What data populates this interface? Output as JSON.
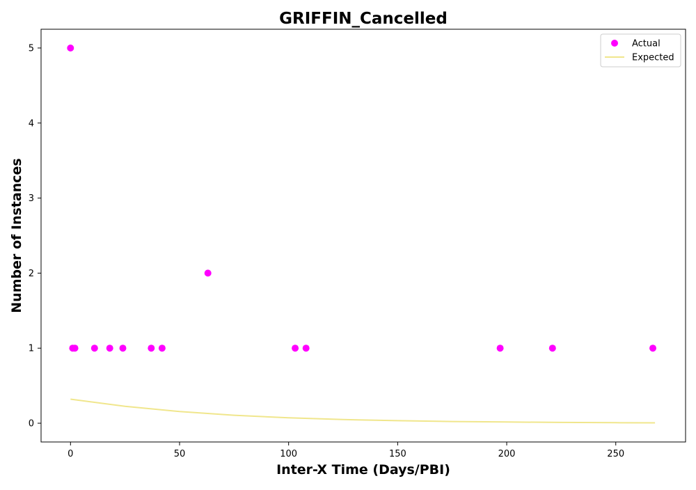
{
  "chart_data": {
    "type": "scatter",
    "title": "GRIFFIN_Cancelled",
    "xlabel": "Inter-X Time (Days/PBI)",
    "ylabel": "Number of Instances",
    "xlim": [
      -13.5,
      282
    ],
    "ylim": [
      -0.25,
      5.25
    ],
    "xticks": [
      0,
      50,
      100,
      150,
      200,
      250
    ],
    "yticks": [
      0,
      1,
      2,
      3,
      4,
      5
    ],
    "grid": false,
    "legend_position": "top-right",
    "series": [
      {
        "name": "Actual",
        "kind": "scatter",
        "color": "#ff00ff",
        "points": [
          {
            "x": 0,
            "y": 5
          },
          {
            "x": 1,
            "y": 1
          },
          {
            "x": 2,
            "y": 1
          },
          {
            "x": 11,
            "y": 1
          },
          {
            "x": 18,
            "y": 1
          },
          {
            "x": 24,
            "y": 1
          },
          {
            "x": 37,
            "y": 1
          },
          {
            "x": 42,
            "y": 1
          },
          {
            "x": 63,
            "y": 2
          },
          {
            "x": 103,
            "y": 1
          },
          {
            "x": 108,
            "y": 1
          },
          {
            "x": 197,
            "y": 1
          },
          {
            "x": 221,
            "y": 1
          },
          {
            "x": 267,
            "y": 1
          }
        ]
      },
      {
        "name": "Expected",
        "kind": "line",
        "color": "#f0e68c",
        "points": [
          {
            "x": 0,
            "y": 0.32
          },
          {
            "x": 25,
            "y": 0.225
          },
          {
            "x": 50,
            "y": 0.155
          },
          {
            "x": 75,
            "y": 0.106
          },
          {
            "x": 100,
            "y": 0.072
          },
          {
            "x": 125,
            "y": 0.049
          },
          {
            "x": 150,
            "y": 0.034
          },
          {
            "x": 175,
            "y": 0.023
          },
          {
            "x": 200,
            "y": 0.016
          },
          {
            "x": 225,
            "y": 0.011
          },
          {
            "x": 250,
            "y": 0.007
          },
          {
            "x": 268,
            "y": 0.005
          }
        ]
      }
    ]
  }
}
